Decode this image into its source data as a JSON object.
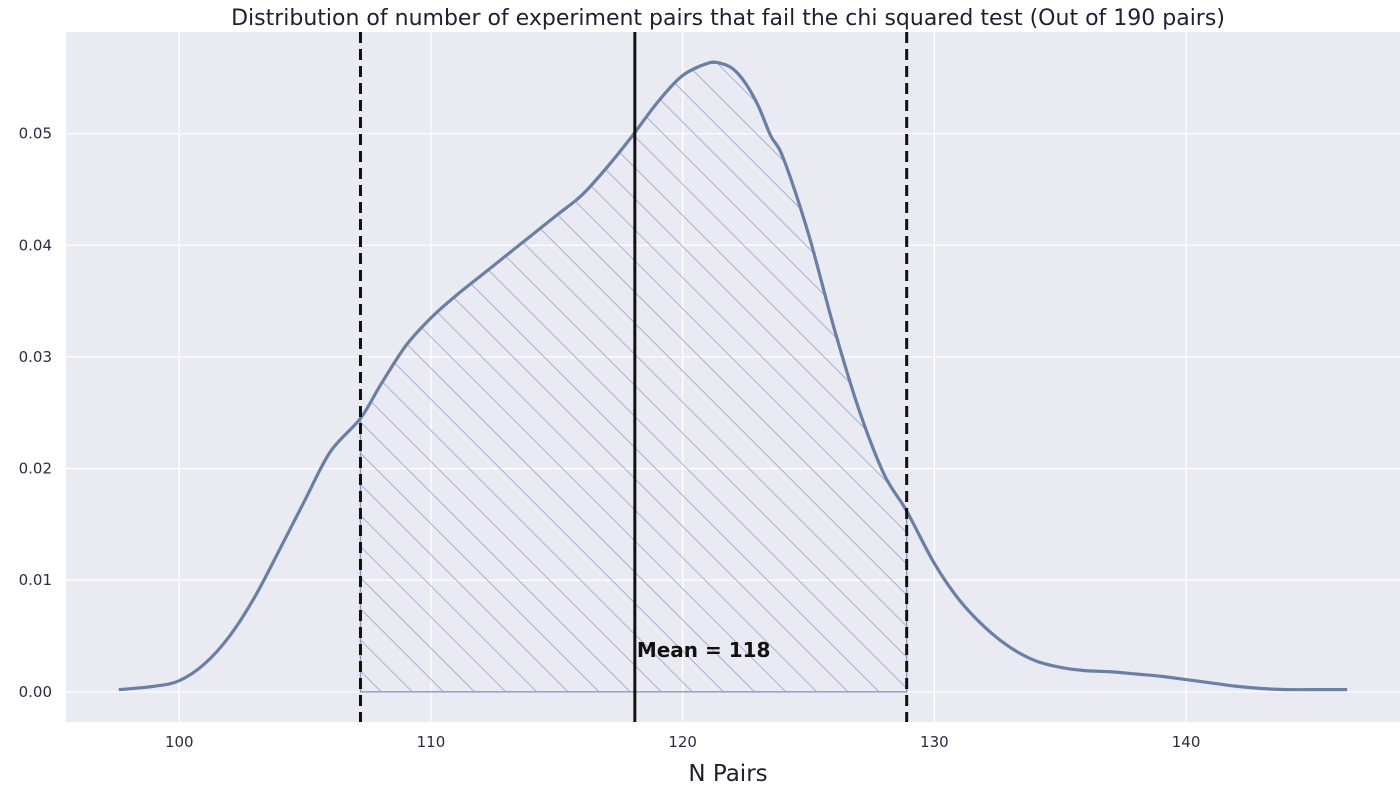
{
  "chart_data": {
    "type": "area",
    "title": "Distribution of number of experiment pairs that fail the chi squared test (Out of 190 pairs)",
    "xlabel": "N Pairs",
    "ylabel": "",
    "xlim": [
      95.5,
      148.5
    ],
    "ylim": [
      -0.0027,
      0.0591
    ],
    "xticks": [
      100,
      110,
      120,
      130,
      140
    ],
    "yticks": [
      0.0,
      0.01,
      0.02,
      0.03,
      0.04,
      0.05
    ],
    "xtick_labels": [
      "100",
      "110",
      "120",
      "130",
      "140"
    ],
    "ytick_labels": [
      "0.00",
      "0.01",
      "0.02",
      "0.03",
      "0.04",
      "0.05"
    ],
    "grid": true,
    "legend": "none",
    "series": [
      {
        "type": "kde",
        "color": "#6b7ea3",
        "x": [
          97.6,
          99.0,
          100.0,
          101.0,
          102.0,
          103.0,
          104.0,
          105.0,
          106.0,
          107.2,
          108.0,
          109.0,
          110.0,
          111.0,
          112.0,
          113.0,
          114.0,
          115.0,
          116.0,
          117.0,
          118.0,
          119.0,
          120.0,
          121.0,
          121.5,
          122.0,
          122.5,
          123.0,
          123.5,
          124.0,
          125.0,
          126.0,
          127.0,
          128.0,
          128.9,
          130.0,
          131.0,
          132.0,
          133.0,
          134.0,
          135.0,
          136.0,
          137.0,
          138.0,
          139.0,
          140.0,
          141.0,
          142.0,
          143.0,
          144.0,
          145.0,
          146.4
        ],
        "y": [
          0.0002,
          0.0005,
          0.001,
          0.0025,
          0.005,
          0.0085,
          0.0128,
          0.0172,
          0.0215,
          0.0245,
          0.0275,
          0.031,
          0.0335,
          0.0355,
          0.0373,
          0.0391,
          0.0409,
          0.0427,
          0.0445,
          0.047,
          0.0498,
          0.0528,
          0.0552,
          0.0563,
          0.0563,
          0.0558,
          0.0545,
          0.0525,
          0.0498,
          0.0478,
          0.041,
          0.0327,
          0.0253,
          0.0195,
          0.0162,
          0.0115,
          0.0082,
          0.0058,
          0.004,
          0.0028,
          0.0022,
          0.0019,
          0.0018,
          0.0016,
          0.0014,
          0.0011,
          0.0008,
          0.0005,
          0.0003,
          0.0002,
          0.0002,
          0.0002
        ]
      }
    ],
    "shaded_region": {
      "x_from": 107.2,
      "x_to": 128.9,
      "pattern": "diagonal-hatch",
      "color": "#8a98c4"
    },
    "vertical_lines": [
      {
        "x": 107.2,
        "style": "dashed",
        "color": "#111111"
      },
      {
        "x": 118.1,
        "style": "solid",
        "color": "#111111"
      },
      {
        "x": 128.9,
        "style": "dashed",
        "color": "#111111"
      }
    ],
    "annotations": [
      {
        "text": "Mean = 118",
        "x": 118.1,
        "y": 0.0025
      }
    ],
    "colors": {
      "background": "#eaeaf2",
      "grid": "#ffffff",
      "curve": "#6b7ea3",
      "hatch": "#8a98c4"
    }
  }
}
